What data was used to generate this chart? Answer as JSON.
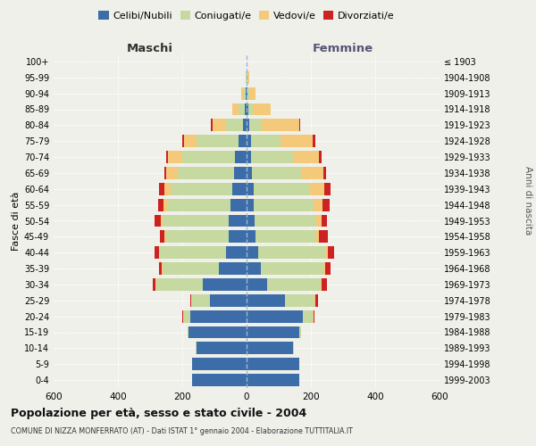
{
  "age_groups": [
    "0-4",
    "5-9",
    "10-14",
    "15-19",
    "20-24",
    "25-29",
    "30-34",
    "35-39",
    "40-44",
    "45-49",
    "50-54",
    "55-59",
    "60-64",
    "65-69",
    "70-74",
    "75-79",
    "80-84",
    "85-89",
    "90-94",
    "95-99",
    "100+"
  ],
  "birth_years": [
    "1999-2003",
    "1994-1998",
    "1989-1993",
    "1984-1988",
    "1979-1983",
    "1974-1978",
    "1969-1973",
    "1964-1968",
    "1959-1963",
    "1954-1958",
    "1949-1953",
    "1944-1948",
    "1939-1943",
    "1934-1938",
    "1929-1933",
    "1924-1928",
    "1919-1923",
    "1914-1918",
    "1909-1913",
    "1904-1908",
    "≤ 1903"
  ],
  "males": {
    "celibe": [
      170,
      170,
      155,
      180,
      175,
      115,
      135,
      85,
      65,
      55,
      55,
      50,
      45,
      40,
      35,
      25,
      10,
      5,
      3,
      1,
      0
    ],
    "coniugato": [
      0,
      0,
      3,
      3,
      20,
      55,
      145,
      175,
      205,
      195,
      205,
      195,
      190,
      175,
      165,
      130,
      55,
      20,
      5,
      1,
      0
    ],
    "vedovo": [
      0,
      0,
      0,
      0,
      3,
      3,
      3,
      3,
      3,
      5,
      8,
      12,
      20,
      35,
      45,
      40,
      40,
      20,
      10,
      2,
      0
    ],
    "divorziato": [
      0,
      0,
      0,
      0,
      3,
      3,
      8,
      10,
      13,
      15,
      18,
      18,
      18,
      5,
      5,
      5,
      5,
      0,
      0,
      0,
      0
    ]
  },
  "females": {
    "nubile": [
      165,
      165,
      145,
      165,
      175,
      120,
      65,
      45,
      35,
      28,
      25,
      22,
      22,
      18,
      15,
      15,
      8,
      5,
      3,
      1,
      0
    ],
    "coniugata": [
      0,
      0,
      3,
      5,
      30,
      90,
      165,
      195,
      210,
      185,
      190,
      185,
      175,
      155,
      130,
      90,
      40,
      15,
      5,
      1,
      0
    ],
    "vedova": [
      0,
      0,
      0,
      0,
      3,
      3,
      3,
      5,
      8,
      12,
      18,
      28,
      45,
      65,
      80,
      100,
      115,
      55,
      20,
      5,
      1
    ],
    "divorziata": [
      0,
      0,
      0,
      0,
      3,
      8,
      18,
      15,
      20,
      28,
      18,
      22,
      18,
      8,
      8,
      8,
      5,
      0,
      0,
      0,
      0
    ]
  },
  "colors": {
    "celibe": "#3d6da8",
    "coniugato": "#c5d9a0",
    "vedovo": "#f5c97a",
    "divorziato": "#cc2222"
  },
  "xlim": 600,
  "title": "Popolazione per età, sesso e stato civile - 2004",
  "subtitle": "COMUNE DI NIZZA MONFERRATO (AT) - Dati ISTAT 1° gennaio 2004 - Elaborazione TUTTITALIA.IT",
  "ylabel": "Fasce di età",
  "right_ylabel": "Anni di nascita",
  "legend_labels": [
    "Celibi/Nubili",
    "Coniugati/e",
    "Vedovi/e",
    "Divorziati/e"
  ],
  "maschi_label": "Maschi",
  "femmine_label": "Femmine",
  "background_color": "#f0f0eb"
}
